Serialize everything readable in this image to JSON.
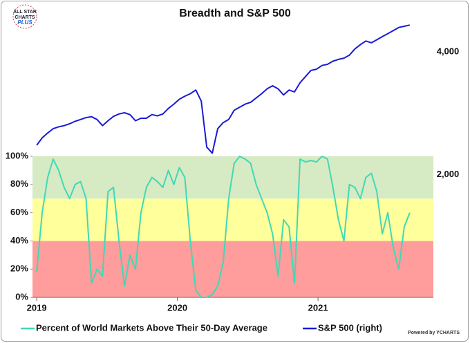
{
  "chart_data": {
    "type": "line",
    "title": "Breadth and S&P 500",
    "logo": [
      "ALL STAR",
      "CHARTS",
      "PLUS"
    ],
    "credit": "Powered by YCHARTS",
    "x": [
      2019,
      2019.039,
      2019.078,
      2019.117,
      2019.156,
      2019.195,
      2019.234,
      2019.273,
      2019.312,
      2019.351,
      2019.39,
      2019.429,
      2019.468,
      2019.507,
      2019.546,
      2019.585,
      2019.624,
      2019.663,
      2019.702,
      2019.741,
      2019.78,
      2019.819,
      2019.858,
      2019.897,
      2019.936,
      2019.975,
      2020.014,
      2020.053,
      2020.092,
      2020.131,
      2020.17,
      2020.209,
      2020.248,
      2020.287,
      2020.326,
      2020.365,
      2020.404,
      2020.443,
      2020.482,
      2020.521,
      2020.56,
      2020.599,
      2020.638,
      2020.677,
      2020.716,
      2020.755,
      2020.794,
      2020.833,
      2020.872,
      2020.911,
      2020.95,
      2020.989,
      2021.028,
      2021.067,
      2021.106,
      2021.145,
      2021.184,
      2021.223,
      2021.262,
      2021.301,
      2021.34,
      2021.379,
      2021.418,
      2021.457,
      2021.496,
      2021.535,
      2021.574,
      2021.613,
      2021.652
    ],
    "series": [
      {
        "name": "Percent of World Markets Above Their 50-Day Average",
        "color": "#3fd9b6",
        "values": [
          18,
          60,
          85,
          98,
          90,
          78,
          70,
          80,
          82,
          70,
          10,
          20,
          15,
          75,
          78,
          40,
          8,
          30,
          20,
          60,
          78,
          85,
          82,
          78,
          90,
          80,
          92,
          85,
          40,
          5,
          0,
          0,
          2,
          8,
          25,
          70,
          95,
          100,
          98,
          95,
          80,
          70,
          60,
          45,
          15,
          55,
          50,
          10,
          98,
          96,
          97,
          96,
          100,
          98,
          78,
          55,
          40,
          80,
          78,
          70,
          85,
          88,
          75,
          45,
          60,
          35,
          20,
          50,
          60
        ]
      },
      {
        "name": "S&P 500 (right)",
        "color": "#1a1ad6",
        "axis": "y2",
        "values": [
          2480,
          2600,
          2680,
          2750,
          2780,
          2800,
          2830,
          2870,
          2900,
          2930,
          2945,
          2900,
          2800,
          2880,
          2950,
          2990,
          3010,
          2980,
          2880,
          2920,
          2920,
          2980,
          2960,
          2990,
          3080,
          3150,
          3230,
          3280,
          3320,
          3380,
          3200,
          2450,
          2350,
          2750,
          2850,
          2900,
          3050,
          3100,
          3150,
          3180,
          3250,
          3320,
          3400,
          3450,
          3400,
          3300,
          3380,
          3350,
          3500,
          3600,
          3700,
          3720,
          3780,
          3800,
          3850,
          3880,
          3900,
          3950,
          4050,
          4120,
          4180,
          4150,
          4200,
          4250,
          4300,
          4350,
          4400,
          4420,
          4440
        ]
      }
    ],
    "bands": [
      {
        "from": 0,
        "to": 40,
        "color": "#ff9c9c"
      },
      {
        "from": 40,
        "to": 70,
        "color": "#ffff9c"
      },
      {
        "from": 70,
        "to": 100,
        "color": "#d6eac4"
      }
    ],
    "xlim": [
      2018.97,
      2021.82
    ],
    "xticks": [
      2019,
      2020,
      2021
    ],
    "ylim": [
      0,
      200
    ],
    "yticks": [
      {
        "value": 0,
        "label": "0%"
      },
      {
        "value": 20,
        "label": "20%"
      },
      {
        "value": 40,
        "label": "40%"
      },
      {
        "value": 60,
        "label": "60%"
      },
      {
        "value": 80,
        "label": "80%"
      },
      {
        "value": 100,
        "label": "100%"
      }
    ],
    "y2lim": [
      0,
      4600
    ],
    "y2ticks": [
      {
        "value": 2000,
        "label": "2,000"
      },
      {
        "value": 4000,
        "label": "4,000"
      }
    ]
  }
}
